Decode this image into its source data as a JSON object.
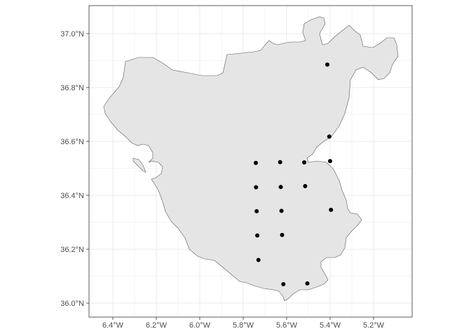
{
  "chart_data": {
    "type": "scatter",
    "title": "",
    "xlabel": "",
    "ylabel": "",
    "grid": true,
    "x_ticks": [
      {
        "value": -6.4,
        "label": "6.4°W"
      },
      {
        "value": -6.2,
        "label": "6.2°W"
      },
      {
        "value": -6.0,
        "label": "6.0°W"
      },
      {
        "value": -5.8,
        "label": "5.8°W"
      },
      {
        "value": -5.6,
        "label": "5.6°W"
      },
      {
        "value": -5.4,
        "label": "5.4°W"
      },
      {
        "value": -5.2,
        "label": "5.2°W"
      }
    ],
    "y_ticks": [
      {
        "value": 36.0,
        "label": "36.0°N"
      },
      {
        "value": 36.2,
        "label": "36.2°N"
      },
      {
        "value": 36.4,
        "label": "36.4°N"
      },
      {
        "value": 36.6,
        "label": "36.6°N"
      },
      {
        "value": 36.8,
        "label": "36.8°N"
      },
      {
        "value": 37.0,
        "label": "37.0°N"
      }
    ],
    "xlim": [
      -6.53,
      -5.07
    ],
    "ylim": [
      35.955,
      37.105
    ],
    "region_fill": "#e5e5e5",
    "region_stroke": "#5a5a5a",
    "panel_border": "#333333",
    "grid_color": "#ebebeb",
    "point_color": "#000000",
    "points": [
      {
        "x": -5.413,
        "y": 36.885
      },
      {
        "x": -5.404,
        "y": 36.618
      },
      {
        "x": -5.4,
        "y": 36.527
      },
      {
        "x": -5.742,
        "y": 36.52
      },
      {
        "x": -5.63,
        "y": 36.523
      },
      {
        "x": -5.519,
        "y": 36.522
      },
      {
        "x": -5.741,
        "y": 36.43
      },
      {
        "x": -5.627,
        "y": 36.431
      },
      {
        "x": -5.515,
        "y": 36.434
      },
      {
        "x": -5.738,
        "y": 36.341
      },
      {
        "x": -5.624,
        "y": 36.342
      },
      {
        "x": -5.396,
        "y": 36.346
      },
      {
        "x": -5.735,
        "y": 36.251
      },
      {
        "x": -5.621,
        "y": 36.253
      },
      {
        "x": -5.73,
        "y": 36.16
      },
      {
        "x": -5.615,
        "y": 36.07
      },
      {
        "x": -5.505,
        "y": 36.073
      }
    ]
  }
}
